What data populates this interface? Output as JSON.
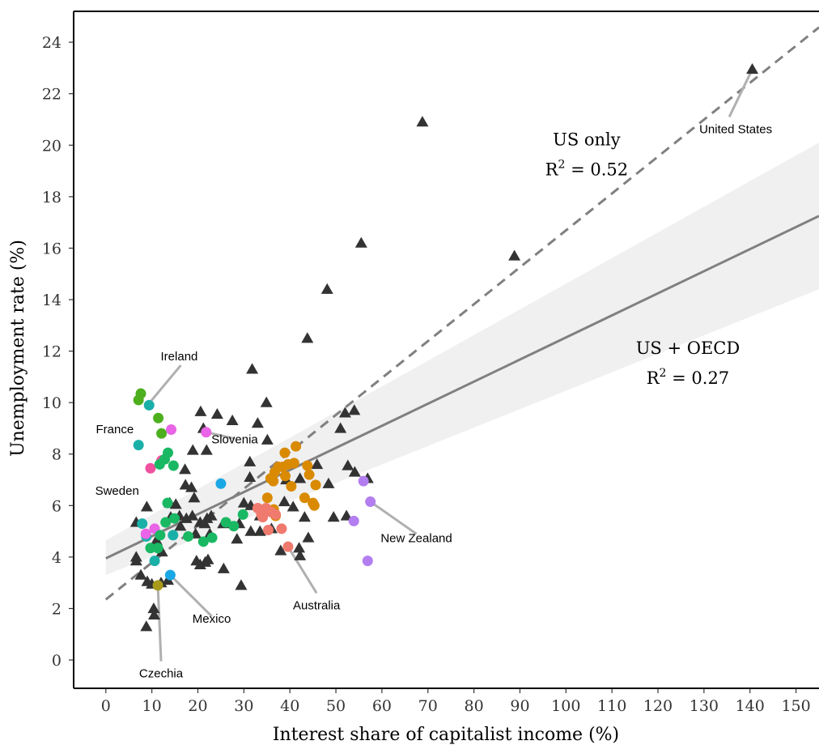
{
  "chart_data": {
    "type": "scatter",
    "xlabel": "Interest share of capitalist income (%)",
    "ylabel": "Unemployment rate (%)",
    "xlim": [
      -7,
      155
    ],
    "ylim": [
      -1.1,
      25.2
    ],
    "xticks": [
      0,
      10,
      20,
      30,
      40,
      50,
      60,
      70,
      80,
      90,
      100,
      110,
      120,
      130,
      140,
      150
    ],
    "yticks": [
      0,
      2,
      4,
      6,
      8,
      10,
      12,
      14,
      16,
      18,
      20,
      22,
      24
    ],
    "grid": false,
    "legend": "none",
    "colors": {
      "us": "#333333",
      "fit_line": "#808080",
      "band": "#f0f0f0",
      "leader": "#b0b0b0",
      "ireland": "#4daf1e",
      "france": "#1ab0a8",
      "slovenia": "#e964e6",
      "sweden": "#1ab0a8",
      "mexico": "#1aa7e6",
      "czechia": "#a89a1a",
      "australia": "#f07a6e",
      "new_zealand": "#b37ef0",
      "pink": "#f052a0",
      "green": "#1ab863",
      "orange": "#d98a00"
    },
    "series": [
      {
        "marker": "triangle",
        "color_key": "us",
        "points": [
          [
            140.5,
            22.95
          ],
          [
            68.8,
            20.9
          ],
          [
            55.5,
            16.2
          ],
          [
            88.8,
            15.7
          ],
          [
            48.1,
            14.4
          ],
          [
            43.8,
            12.5
          ],
          [
            31.8,
            11.3
          ],
          [
            34.9,
            10.0
          ],
          [
            20.6,
            9.65
          ],
          [
            24.2,
            9.55
          ],
          [
            27.5,
            9.3
          ],
          [
            33.0,
            9.2
          ],
          [
            52.0,
            9.6
          ],
          [
            54.0,
            9.7
          ],
          [
            51.0,
            9.0
          ],
          [
            21.2,
            9.0
          ],
          [
            35.1,
            8.55
          ],
          [
            18.9,
            8.15
          ],
          [
            21.9,
            8.15
          ],
          [
            31.3,
            7.7
          ],
          [
            17.2,
            7.4
          ],
          [
            45.9,
            7.6
          ],
          [
            52.6,
            7.55
          ],
          [
            54.1,
            7.3
          ],
          [
            56.9,
            7.05
          ],
          [
            48.4,
            6.85
          ],
          [
            31.3,
            7.1
          ],
          [
            39.2,
            7.0
          ],
          [
            42.2,
            7.05
          ],
          [
            17.3,
            6.8
          ],
          [
            18.6,
            6.7
          ],
          [
            19.2,
            6.3
          ],
          [
            38.8,
            6.15
          ],
          [
            40.7,
            5.95
          ],
          [
            13.9,
            6.1
          ],
          [
            15.2,
            6.05
          ],
          [
            8.9,
            5.95
          ],
          [
            6.6,
            5.35
          ],
          [
            22.9,
            5.6
          ],
          [
            22.0,
            5.5
          ],
          [
            14.1,
            5.55
          ],
          [
            16.0,
            5.6
          ],
          [
            17.5,
            5.5
          ],
          [
            18.8,
            5.6
          ],
          [
            20.5,
            5.35
          ],
          [
            21.5,
            5.3
          ],
          [
            43.2,
            5.55
          ],
          [
            49.5,
            5.55
          ],
          [
            52.3,
            5.6
          ],
          [
            25.5,
            5.3
          ],
          [
            29.0,
            5.3
          ],
          [
            30.0,
            6.1
          ],
          [
            31.5,
            6.0
          ],
          [
            33.5,
            5.6
          ],
          [
            31.5,
            5.0
          ],
          [
            33.5,
            5.0
          ],
          [
            36.0,
            5.1
          ],
          [
            16.2,
            5.2
          ],
          [
            19.5,
            4.9
          ],
          [
            22.6,
            4.9
          ],
          [
            11.0,
            4.65
          ],
          [
            12.2,
            4.2
          ],
          [
            28.5,
            4.7
          ],
          [
            42.0,
            4.35
          ],
          [
            44.0,
            4.75
          ],
          [
            6.6,
            4.0
          ],
          [
            6.6,
            3.85
          ],
          [
            19.7,
            3.85
          ],
          [
            21.6,
            3.8
          ],
          [
            22.2,
            3.9
          ],
          [
            20.5,
            3.7
          ],
          [
            25.6,
            3.55
          ],
          [
            42.2,
            4.05
          ],
          [
            38.0,
            4.25
          ],
          [
            7.6,
            3.3
          ],
          [
            9.0,
            3.05
          ],
          [
            10.0,
            2.95
          ],
          [
            12.0,
            3.0
          ],
          [
            13.5,
            3.1
          ],
          [
            29.4,
            2.9
          ],
          [
            10.4,
            2.0
          ],
          [
            10.5,
            1.75
          ],
          [
            8.8,
            1.3
          ]
        ]
      },
      {
        "marker": "circle",
        "color_key": "ireland",
        "points": [
          [
            7.6,
            10.35
          ],
          [
            7.1,
            10.1
          ],
          [
            11.4,
            9.4
          ],
          [
            12.1,
            8.8
          ]
        ]
      },
      {
        "marker": "circle",
        "color_key": "france",
        "points": [
          [
            9.4,
            9.9
          ],
          [
            7.1,
            8.35
          ],
          [
            7.9,
            5.3
          ],
          [
            8.8,
            4.8
          ],
          [
            10.6,
            3.85
          ],
          [
            14.6,
            4.85
          ]
        ]
      },
      {
        "marker": "circle",
        "color_key": "slovenia",
        "points": [
          [
            14.2,
            8.95
          ],
          [
            21.8,
            8.85
          ],
          [
            10.6,
            5.1
          ],
          [
            8.7,
            4.9
          ]
        ]
      },
      {
        "marker": "circle",
        "color_key": "pink",
        "points": [
          [
            9.7,
            7.45
          ],
          [
            12.1,
            7.75
          ]
        ]
      },
      {
        "marker": "circle",
        "color_key": "green",
        "points": [
          [
            13.5,
            8.05
          ],
          [
            12.8,
            7.8
          ],
          [
            11.7,
            7.6
          ],
          [
            14.7,
            7.55
          ],
          [
            13.4,
            6.1
          ],
          [
            13.0,
            5.35
          ],
          [
            14.9,
            5.5
          ],
          [
            11.8,
            4.85
          ],
          [
            17.9,
            4.8
          ],
          [
            9.7,
            4.35
          ],
          [
            11.3,
            4.35
          ],
          [
            29.8,
            5.65
          ],
          [
            27.8,
            5.2
          ],
          [
            26.1,
            5.35
          ],
          [
            21.2,
            4.6
          ],
          [
            23.1,
            4.75
          ]
        ]
      },
      {
        "marker": "circle",
        "color_key": "mexico",
        "points": [
          [
            25.0,
            6.85
          ],
          [
            14.0,
            3.3
          ]
        ]
      },
      {
        "marker": "circle",
        "color_key": "czechia",
        "points": [
          [
            11.3,
            2.9
          ]
        ]
      },
      {
        "marker": "circle",
        "color_key": "orange",
        "points": [
          [
            41.3,
            8.3
          ],
          [
            38.9,
            8.05
          ],
          [
            40.9,
            7.65
          ],
          [
            39.6,
            7.6
          ],
          [
            38.4,
            7.5
          ],
          [
            37.5,
            7.5
          ],
          [
            36.7,
            7.3
          ],
          [
            35.8,
            7.05
          ],
          [
            36.4,
            6.95
          ],
          [
            43.8,
            7.55
          ],
          [
            44.2,
            7.2
          ],
          [
            39.0,
            7.15
          ],
          [
            40.3,
            6.75
          ],
          [
            45.6,
            6.8
          ],
          [
            35.1,
            6.3
          ],
          [
            43.2,
            6.3
          ],
          [
            45.0,
            6.1
          ],
          [
            45.3,
            6.0
          ],
          [
            36.5,
            5.85
          ],
          [
            36.9,
            5.6
          ]
        ]
      },
      {
        "marker": "circle",
        "color_key": "australia",
        "points": [
          [
            33.0,
            5.9
          ],
          [
            34.8,
            5.9
          ],
          [
            33.8,
            5.65
          ],
          [
            35.9,
            5.75
          ],
          [
            36.9,
            5.65
          ],
          [
            34.1,
            5.55
          ],
          [
            35.3,
            5.05
          ],
          [
            38.2,
            5.1
          ],
          [
            39.6,
            4.4
          ]
        ]
      },
      {
        "marker": "circle",
        "color_key": "new_zealand",
        "points": [
          [
            56.0,
            6.95
          ],
          [
            57.5,
            6.15
          ],
          [
            53.9,
            5.4
          ],
          [
            56.9,
            3.85
          ]
        ]
      }
    ],
    "annotations": [
      {
        "text": "United States",
        "x": 140.5,
        "y": 22.95,
        "lx": 135.5,
        "ly": 21.1
      },
      {
        "text": "Ireland",
        "x": 9.3,
        "y": 9.95,
        "lx": 16.3,
        "ly": 11.45
      },
      {
        "text": "France",
        "x": 7.1,
        "y": 8.35,
        "lx": 3.0,
        "ly": 9.0
      },
      {
        "text": "Slovenia",
        "x": 21.8,
        "y": 8.85,
        "lx": 28.0,
        "ly": 8.6
      },
      {
        "text": "Sweden",
        "x": 7.9,
        "y": 5.3,
        "lx": 3.5,
        "ly": 6.6
      },
      {
        "text": "New Zealand",
        "x": 57.5,
        "y": 6.15,
        "lx": 67.5,
        "ly": 4.9
      },
      {
        "text": "Australia",
        "x": 39.6,
        "y": 4.4,
        "lx": 45.8,
        "ly": 2.6
      },
      {
        "text": "Mexico",
        "x": 14.0,
        "y": 3.3,
        "lx": 23.0,
        "ly": 1.7
      },
      {
        "text": "Czechia",
        "x": 11.3,
        "y": 2.9,
        "lx": 12.0,
        "ly": -0.05
      }
    ],
    "fit_lines": [
      {
        "name": "US only",
        "style": "dashed",
        "intercept": 2.35,
        "slope": 0.1434,
        "x0": 0,
        "x1": 155
      },
      {
        "name": "US + OECD",
        "style": "solid",
        "intercept": 3.95,
        "slope": 0.0858,
        "x0": 0,
        "x1": 155,
        "band": {
          "at_x0": [
            3.3,
            4.65
          ],
          "at_x1": [
            14.4,
            20.1
          ]
        }
      }
    ],
    "fit_stats": [
      {
        "label": "US only",
        "r2_text": "R² = 0.52",
        "r2_pre": "R",
        "r2_sup": "2",
        "r2_post": " = 0.52",
        "x": 104.5,
        "y": 20.0
      },
      {
        "label": "US + OECD",
        "r2_text": "R² = 0.27",
        "r2_pre": "R",
        "r2_sup": "2",
        "r2_post": " = 0.27",
        "x": 126.5,
        "y": 11.9
      }
    ]
  }
}
